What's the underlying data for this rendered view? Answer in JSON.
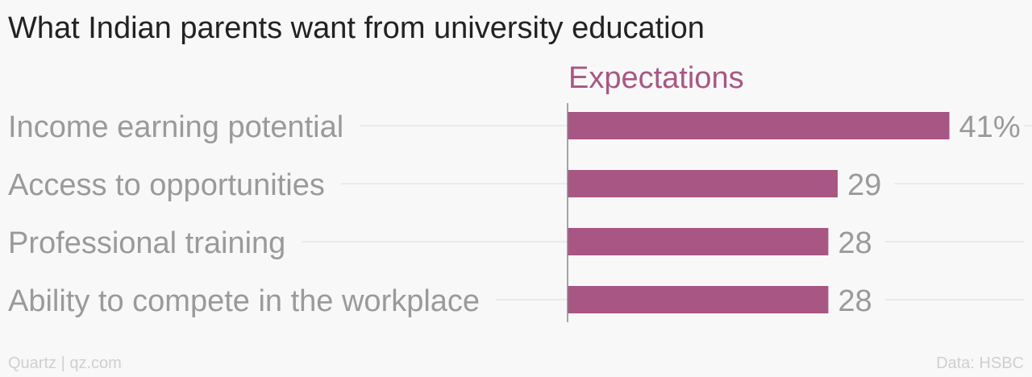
{
  "chart_data": {
    "type": "bar",
    "orientation": "horizontal",
    "title": "What Indian parents want from university education",
    "series": [
      {
        "name": "Expectations",
        "values": [
          41,
          29,
          28,
          28
        ],
        "color": "#a85684"
      }
    ],
    "categories": [
      "Income earning potential",
      "Access to opportunities",
      "Professional training",
      "Ability to compete in the workplace"
    ],
    "data_labels": [
      "41%",
      "29",
      "28",
      "28"
    ],
    "xlim": [
      0,
      45
    ],
    "grid": true
  },
  "footer": {
    "source_left": "Quartz | qz.com",
    "source_right": "Data: HSBC"
  },
  "colors": {
    "bar": "#a85684",
    "text_muted": "#9a9a9a",
    "grid": "#e6e6e6",
    "axis": "#888888"
  }
}
